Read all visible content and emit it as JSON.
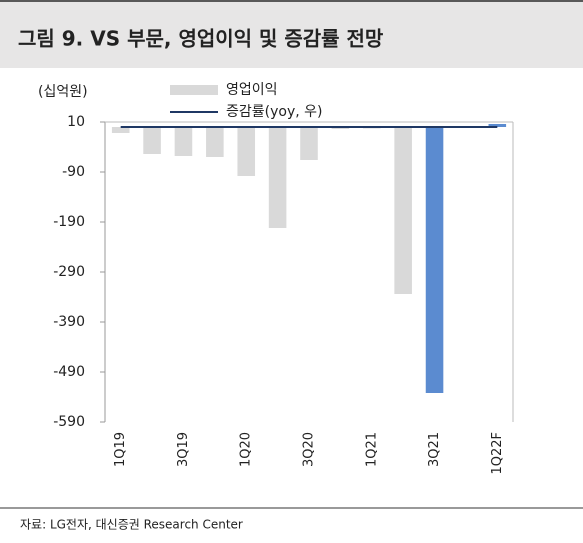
{
  "header": {
    "title": "그림 9. VS 부문, 영업이익 및 증감률 전망"
  },
  "chart_data": {
    "type": "bar",
    "unit_label": "(십억원)",
    "categories": [
      "1Q19",
      null,
      "3Q19",
      null,
      "1Q20",
      null,
      "3Q20",
      null,
      "1Q21",
      null,
      "3Q21",
      null,
      "1Q22F"
    ],
    "series": [
      {
        "name": "영업이익",
        "color": "#d9d9d9",
        "bar_colors": [
          "#d9d9d9",
          "#d9d9d9",
          "#d9d9d9",
          "#d9d9d9",
          "#d9d9d9",
          "#d9d9d9",
          "#d9d9d9",
          "#d9d9d9",
          "#d9d9d9",
          "#d9d9d9",
          "#5b8bd0",
          "#d9d9d9",
          "#5b8bd0"
        ],
        "values": [
          -12,
          -54,
          -58,
          -60,
          -98,
          -202,
          -66,
          -4,
          -3,
          -334,
          -532,
          -2,
          6
        ]
      },
      {
        "name": "증감률(yoy, 우)",
        "color": "#1f3864",
        "type": "line",
        "values": [
          0,
          0,
          0,
          0,
          0,
          0,
          0,
          0,
          0,
          0,
          0,
          0,
          0
        ]
      }
    ],
    "ylim": [
      -590,
      10
    ],
    "yticks": [
      10,
      -90,
      -190,
      -290,
      -390,
      -490,
      -590
    ]
  },
  "source": "자료: LG전자, 대신증권 Research Center"
}
